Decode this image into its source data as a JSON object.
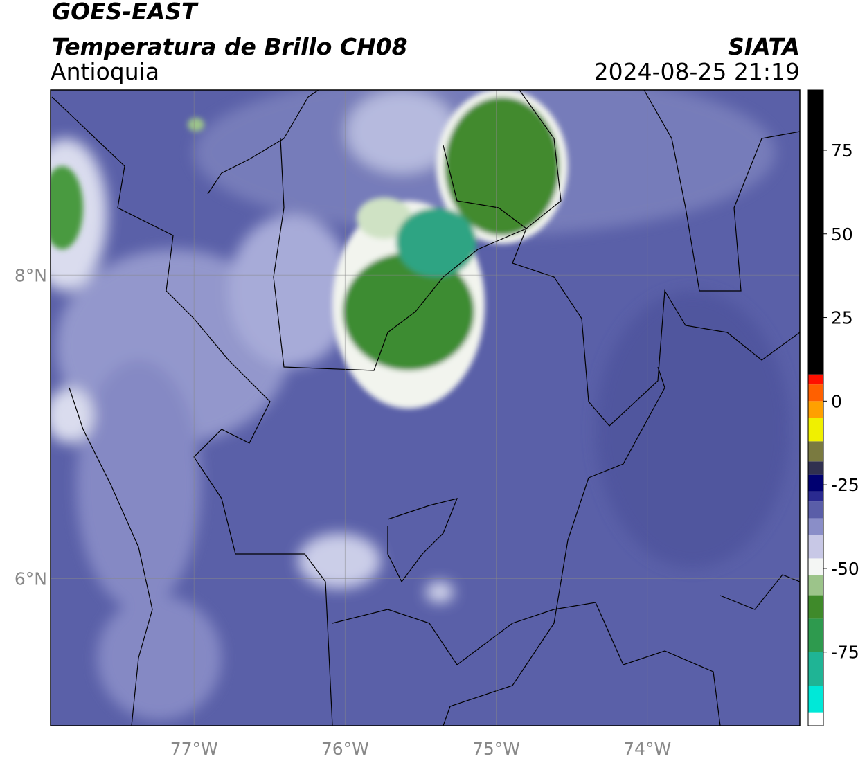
{
  "header": {
    "title": "GOES-EAST",
    "subtitle": "Temperatura de Brillo CH08",
    "region": "Antioquia",
    "agency": "SIATA",
    "datetime": "2024-08-25 21:19"
  },
  "map": {
    "xlim": [
      -77.95,
      -72.99
    ],
    "ylim": [
      5.03,
      9.22
    ],
    "xticks": [
      {
        "value": -77,
        "label": "77°W"
      },
      {
        "value": -76,
        "label": "76°W"
      },
      {
        "value": -75,
        "label": "75°W"
      },
      {
        "value": -74,
        "label": "74°W"
      }
    ],
    "yticks": [
      {
        "value": 6,
        "label": "6°N"
      },
      {
        "value": 8,
        "label": "8°N"
      }
    ],
    "grid": true
  },
  "colorbar": {
    "lim": [
      -97,
      93
    ],
    "ticks": [
      -75,
      -50,
      -25,
      0,
      25,
      50,
      75
    ],
    "bounds": [
      -97,
      -93,
      -85,
      -75,
      -65,
      -58,
      -52,
      -47,
      -40,
      -35,
      -30,
      -27,
      -22,
      -18,
      -12,
      -5,
      0,
      5,
      8,
      93
    ],
    "colors": [
      "#ffffff",
      "#00e8d8",
      "#1fb495",
      "#2e9a4e",
      "#3f8a2a",
      "#9cc48a",
      "#f4f6f4",
      "#c8c8e6",
      "#8a8ec8",
      "#5a5ea8",
      "#2a2a90",
      "#000070",
      "#303050",
      "#7a7a40",
      "#f0f000",
      "#ffa000",
      "#ff6000",
      "#ff1000",
      "#000000"
    ]
  }
}
